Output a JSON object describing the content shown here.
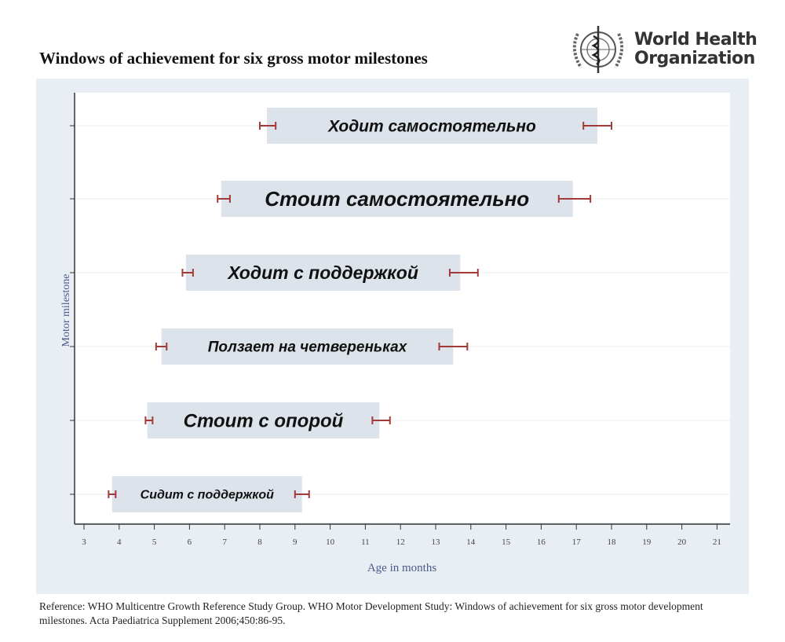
{
  "header": {
    "title": "Windows of achievement for six gross motor milestones",
    "logo_line1": "World Health",
    "logo_line2": "Organization"
  },
  "colors": {
    "bar": "#dde3ea",
    "whisker": "#a33a3a",
    "axis_label": "#4a5a8a",
    "panel": "#e9eef4"
  },
  "chart_data": {
    "type": "bar",
    "orientation": "horizontal-range",
    "title": "Windows of achievement for six gross motor milestones",
    "xlabel": "Age in months",
    "ylabel": "Motor milestone",
    "xlim": [
      3,
      21
    ],
    "xticks": [
      3,
      4,
      5,
      6,
      7,
      8,
      9,
      10,
      11,
      12,
      13,
      14,
      15,
      16,
      17,
      18,
      19,
      20,
      21
    ],
    "categories": [
      "Ходит самостоятельно",
      "Стоит самостоятельно",
      "Ходит с поддержкой",
      "Ползает на четвереньках",
      "Стоит с опорой",
      "Сидит с поддержкой"
    ],
    "series": [
      {
        "name": "window_start",
        "values": [
          8.2,
          6.9,
          5.9,
          5.2,
          4.8,
          3.8
        ]
      },
      {
        "name": "window_end",
        "values": [
          17.6,
          16.9,
          13.7,
          13.5,
          11.4,
          9.2
        ]
      },
      {
        "name": "start_ci_low",
        "values": [
          8.0,
          6.8,
          5.8,
          5.05,
          4.75,
          3.7
        ]
      },
      {
        "name": "start_ci_high",
        "values": [
          8.45,
          7.15,
          6.1,
          5.35,
          4.95,
          3.9
        ]
      },
      {
        "name": "end_ci_low",
        "values": [
          17.2,
          16.5,
          13.4,
          13.1,
          11.2,
          9.0
        ]
      },
      {
        "name": "end_ci_high",
        "values": [
          18.0,
          17.4,
          14.2,
          13.9,
          11.7,
          9.4
        ]
      }
    ],
    "label_sizes": [
      21,
      26,
      23,
      19,
      24,
      16
    ],
    "grid": true
  },
  "footer": {
    "reference": "Reference: WHO Multicentre Growth Reference Study Group. WHO Motor Development Study: Windows of achievement for six gross motor development milestones. Acta Paediatrica Supplement 2006;450:86-95."
  }
}
